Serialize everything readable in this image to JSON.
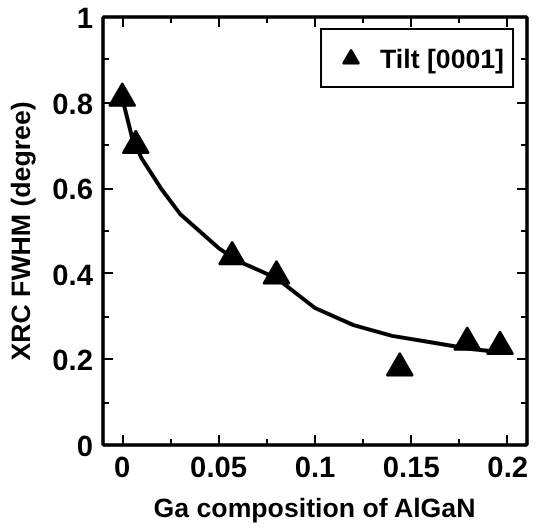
{
  "chart_data": {
    "type": "scatter",
    "xlabel": "Ga composition of AlGaN",
    "ylabel": "XRC FWHM (degree)",
    "series": [
      {
        "name": "Tilt [0001]",
        "color": "#000000",
        "marker": "triangle",
        "x": [
          0,
          0.007,
          0.057,
          0.08,
          0.144,
          0.179,
          0.196
        ],
        "values": [
          0.81,
          0.7,
          0.44,
          0.395,
          0.18,
          0.24,
          0.23
        ]
      },
      {
        "type": "line",
        "color": "#000000",
        "x": [
          0,
          0.005,
          0.01,
          0.02,
          0.03,
          0.04,
          0.05,
          0.06,
          0.08,
          0.1,
          0.12,
          0.14,
          0.16,
          0.18,
          0.2
        ],
        "values": [
          0.81,
          0.72,
          0.67,
          0.6,
          0.54,
          0.5,
          0.46,
          0.43,
          0.39,
          0.32,
          0.28,
          0.255,
          0.24,
          0.225,
          0.215
        ]
      }
    ],
    "xlim": [
      -0.01,
      0.21
    ],
    "ylim": [
      0,
      1
    ],
    "xticks": [
      0,
      0.05,
      0.1,
      0.15,
      0.2
    ],
    "yticks": [
      0,
      0.2,
      0.4,
      0.6,
      0.8,
      1
    ],
    "grid": false,
    "legend": "top right"
  }
}
